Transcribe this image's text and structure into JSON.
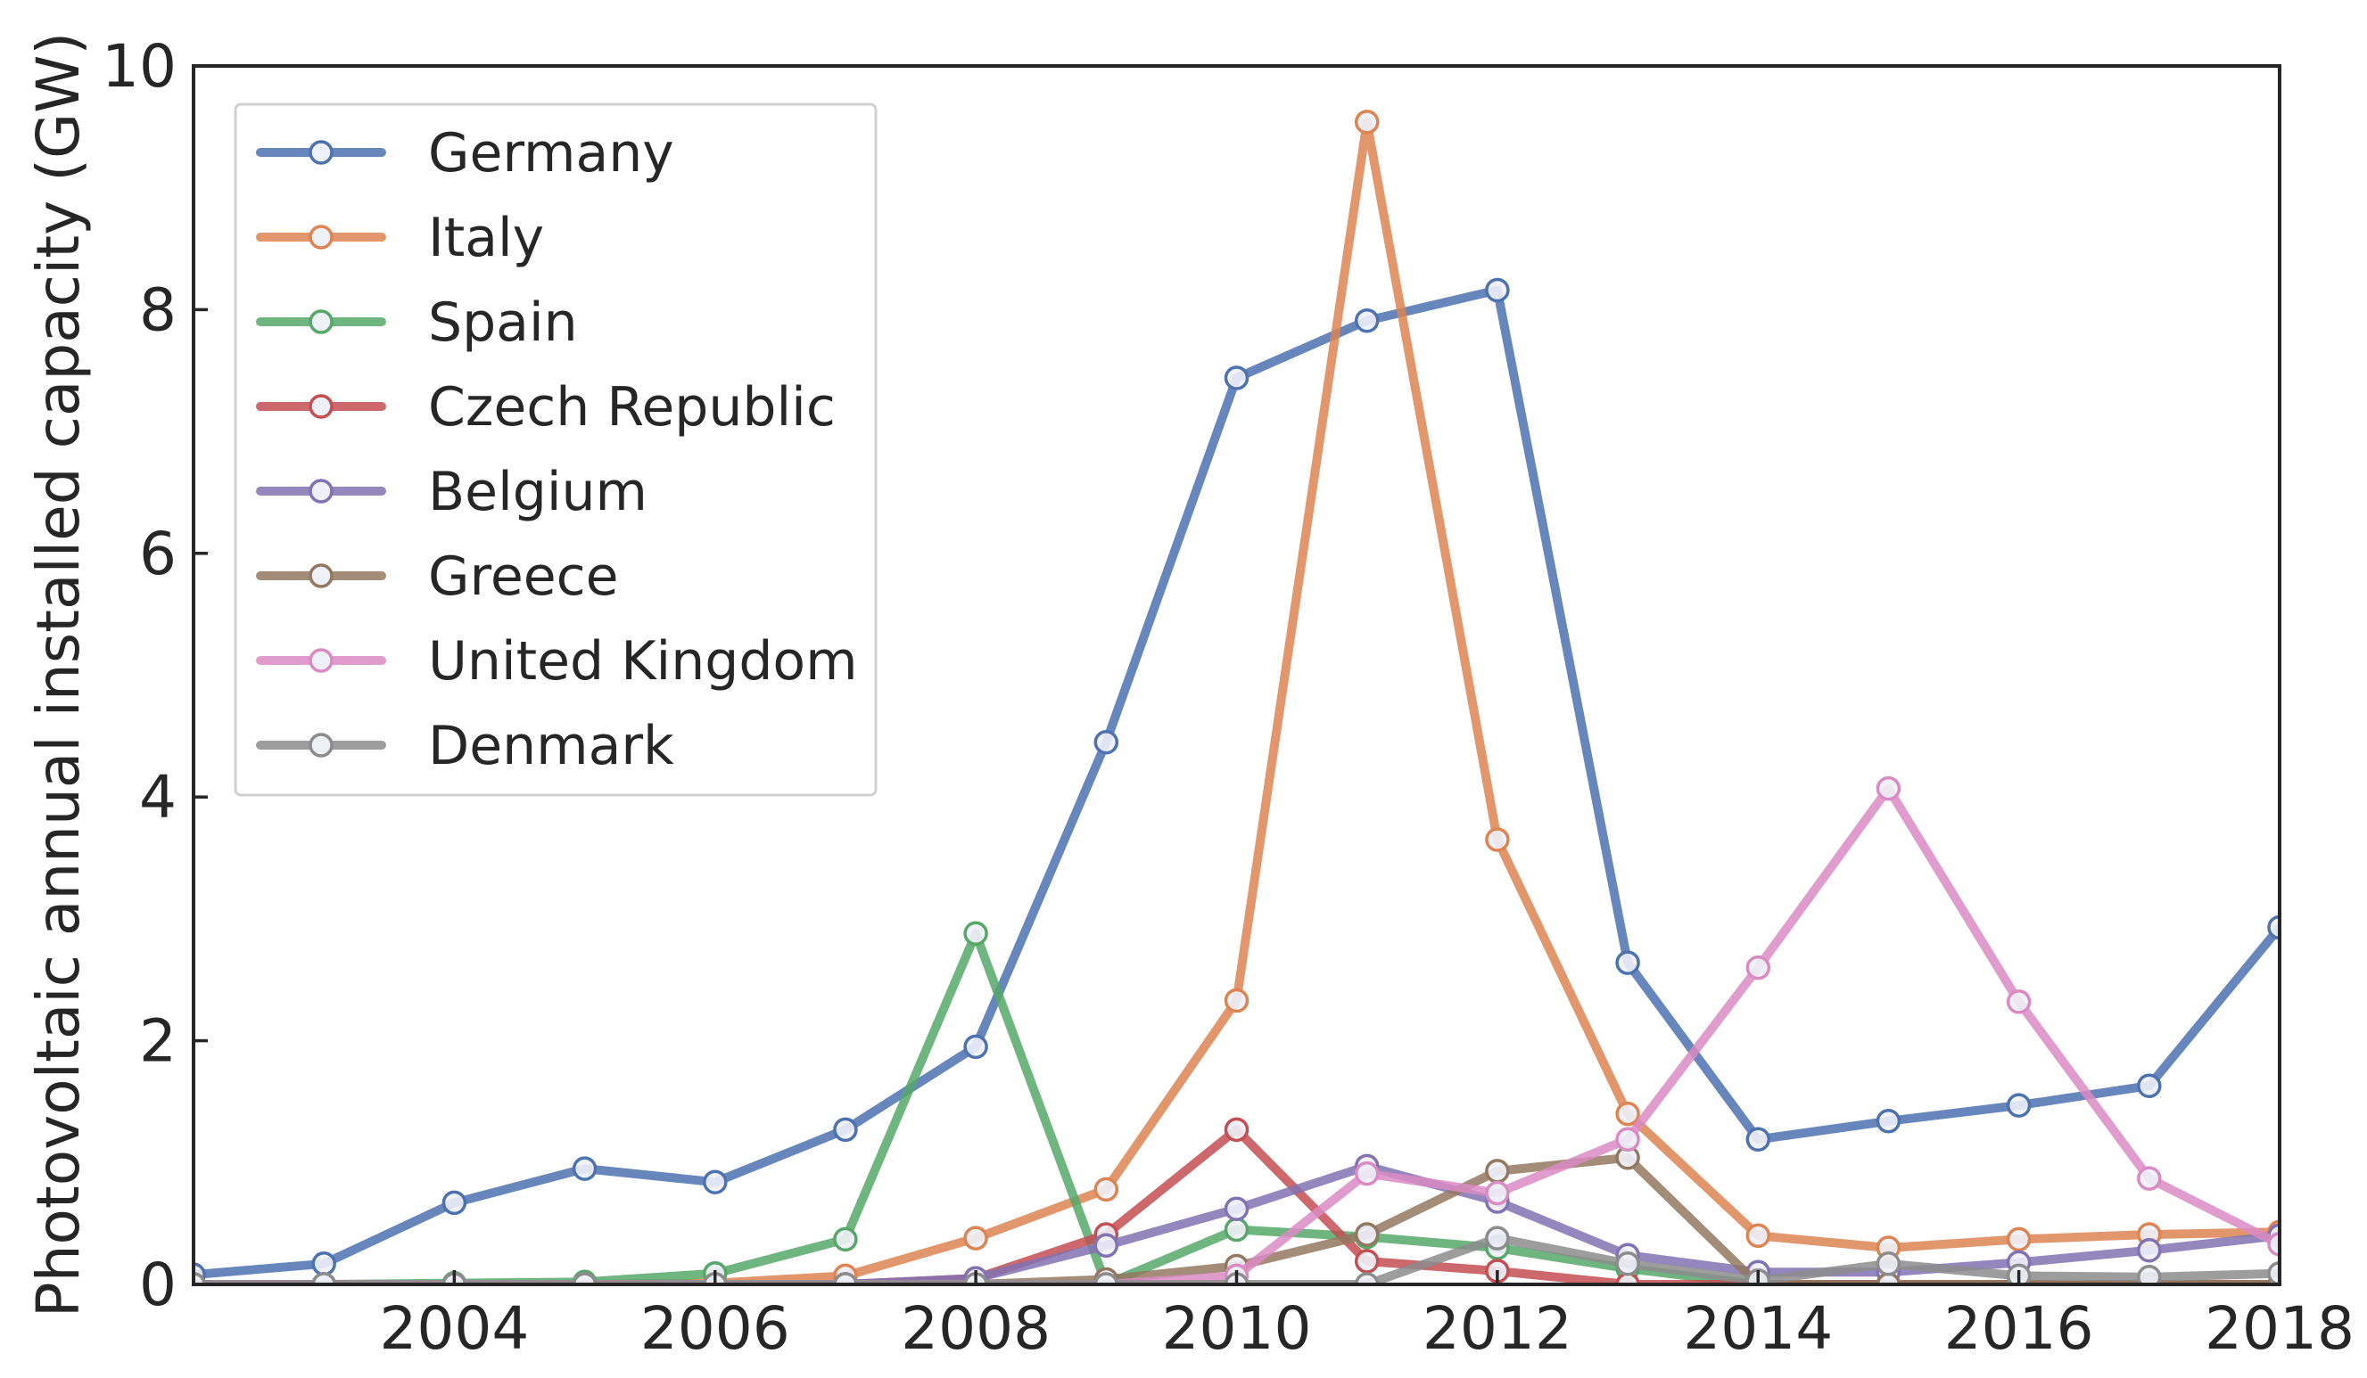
{
  "chart_data": {
    "type": "line",
    "title": "",
    "xlabel": "",
    "ylabel": "Photovoltaic annual installed capacity (GW)",
    "xlim": [
      2002,
      2018
    ],
    "ylim": [
      0,
      10
    ],
    "x_ticks": [
      "2004",
      "2006",
      "2008",
      "2010",
      "2012",
      "2014",
      "2016",
      "2018"
    ],
    "y_ticks": [
      "0",
      "2",
      "4",
      "6",
      "8",
      "10"
    ],
    "grid": false,
    "legend_position": "top-left",
    "x": [
      2002,
      2003,
      2004,
      2005,
      2006,
      2007,
      2008,
      2009,
      2010,
      2011,
      2012,
      2013,
      2014,
      2015,
      2016,
      2017,
      2018
    ],
    "series": [
      {
        "name": "Germany",
        "color": "#4c72b0",
        "values": [
          0.08,
          0.17,
          0.67,
          0.95,
          0.84,
          1.27,
          1.95,
          4.45,
          7.44,
          7.91,
          8.16,
          2.64,
          1.19,
          1.34,
          1.47,
          1.63,
          2.93
        ]
      },
      {
        "name": "Italy",
        "color": "#dd8452",
        "values": [
          0.0,
          0.0,
          0.0,
          0.0,
          0.01,
          0.07,
          0.38,
          0.78,
          2.33,
          9.54,
          3.65,
          1.4,
          0.4,
          0.3,
          0.37,
          0.41,
          0.43
        ]
      },
      {
        "name": "Spain",
        "color": "#55a868",
        "values": [
          0.0,
          0.0,
          0.01,
          0.02,
          0.09,
          0.37,
          2.88,
          0.0,
          0.45,
          0.39,
          0.3,
          0.13,
          0.0,
          0.0,
          0.0,
          0.0,
          0.0
        ]
      },
      {
        "name": "Czech Republic",
        "color": "#c44e52",
        "values": [
          0.0,
          0.0,
          0.0,
          0.0,
          0.0,
          0.0,
          0.05,
          0.41,
          1.27,
          0.19,
          0.11,
          0.0,
          0.0,
          0.0,
          0.0,
          0.0,
          0.0
        ]
      },
      {
        "name": "Belgium",
        "color": "#8172b3",
        "values": [
          0.0,
          0.0,
          0.0,
          0.0,
          0.0,
          0.0,
          0.05,
          0.32,
          0.62,
          0.97,
          0.68,
          0.24,
          0.1,
          0.1,
          0.18,
          0.28,
          0.4
        ]
      },
      {
        "name": "Greece",
        "color": "#937860",
        "values": [
          0.0,
          0.0,
          0.0,
          0.0,
          0.0,
          0.0,
          0.0,
          0.04,
          0.15,
          0.41,
          0.93,
          1.04,
          0.0,
          0.0,
          0.0,
          0.0,
          0.0
        ]
      },
      {
        "name": "United Kingdom",
        "color": "#da8bc3",
        "values": [
          0.0,
          0.0,
          0.0,
          0.0,
          0.0,
          0.0,
          0.0,
          0.0,
          0.07,
          0.91,
          0.75,
          1.19,
          2.6,
          4.07,
          2.32,
          0.87,
          0.33
        ]
      },
      {
        "name": "Denmark",
        "color": "#8c8c8c",
        "values": [
          0.0,
          0.0,
          0.0,
          0.0,
          0.0,
          0.0,
          0.0,
          0.0,
          0.0,
          0.0,
          0.38,
          0.17,
          0.03,
          0.17,
          0.07,
          0.06,
          0.09
        ]
      }
    ]
  }
}
